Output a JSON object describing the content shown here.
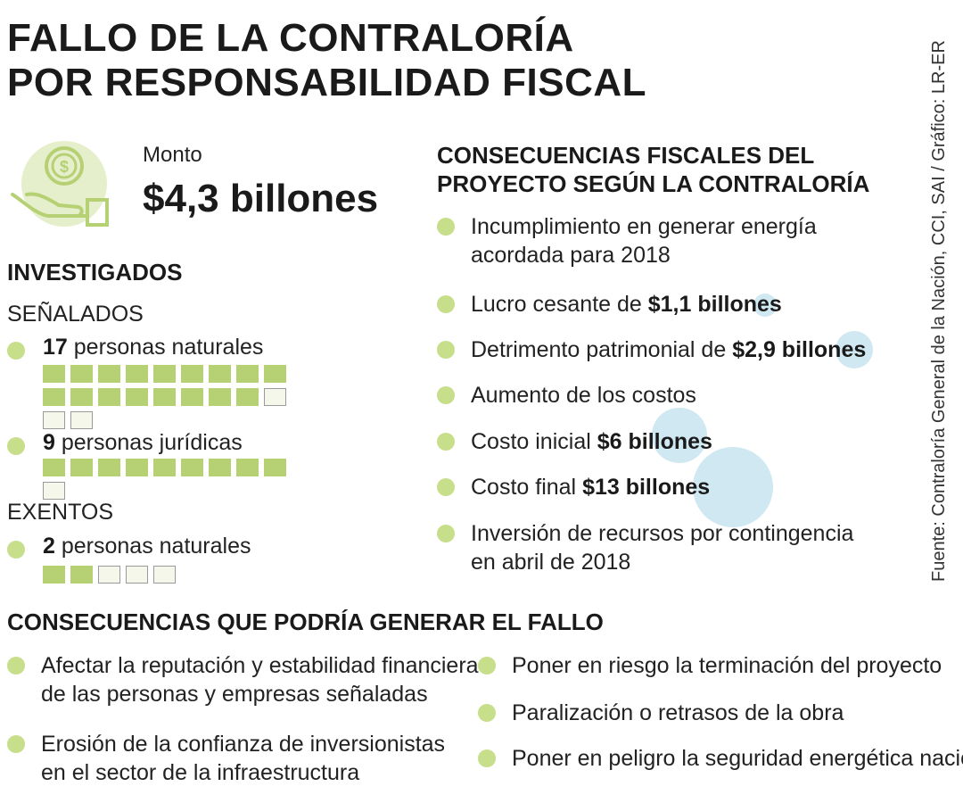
{
  "title": {
    "line1": "FALLO DE LA CONTRALORÍA",
    "line2": "POR RESPONSABILIDAD FISCAL"
  },
  "monto": {
    "label": "Monto",
    "value": "$4,3 billones",
    "icon": "money-hand-icon"
  },
  "investigados": {
    "heading": "INVESTIGADOS",
    "senalados_label": "SEÑALADOS",
    "exentos_label": "EXENTOS",
    "groups": [
      {
        "count": "17",
        "text": "personas naturales",
        "filled": 17,
        "total": 20
      },
      {
        "count": "9",
        "text": "personas jurídicas",
        "filled": 9,
        "total": 10
      },
      {
        "count": "2",
        "text": "personas naturales",
        "filled": 2,
        "total": 5
      }
    ]
  },
  "consecuencias_fiscales": {
    "heading_line1": "CONSECUENCIAS FISCALES DEL",
    "heading_line2": "PROYECTO SEGÚN LA CONTRALORÍA",
    "items": [
      {
        "line1": "Incumplimiento en generar energía",
        "line2": "acordada para 2018"
      },
      {
        "text": "Lucro cesante de ",
        "bold": "$1,1 billones",
        "amount": 1.1
      },
      {
        "text": "Detrimento patrimonial de ",
        "bold": "$2,9 billones",
        "amount": 2.9
      },
      {
        "text": "Aumento de los costos"
      },
      {
        "text": "Costo inicial ",
        "bold": "$6 billones",
        "amount": 6
      },
      {
        "text": "Costo final ",
        "bold": "$13 billones",
        "amount": 13
      },
      {
        "line1": "Inversión de recursos por contingencia",
        "line2": "en abril de 2018"
      }
    ]
  },
  "consecuencias_fallo": {
    "heading": "CONSECUENCIAS QUE PODRÍA GENERAR EL FALLO",
    "left": [
      {
        "line1": "Afectar la reputación y estabilidad financiera",
        "line2": "de las personas y empresas señaladas"
      },
      {
        "line1": "Erosión de la confianza de inversionistas",
        "line2": "en el sector de la infraestructura"
      }
    ],
    "right": [
      {
        "text": "Poner en riesgo la terminación del proyecto"
      },
      {
        "text": "Paralización o retrasos de la obra"
      },
      {
        "text": "Poner en peligro la seguridad energética nacional"
      }
    ]
  },
  "source": "Fuente: Contraloría General de la Nación, CCI, SAI / Gráfico: LR-ER",
  "colors": {
    "accent_green": "#c7de8a",
    "square_green": "#b6d074",
    "bubble_blue": "#c7e4ef"
  }
}
